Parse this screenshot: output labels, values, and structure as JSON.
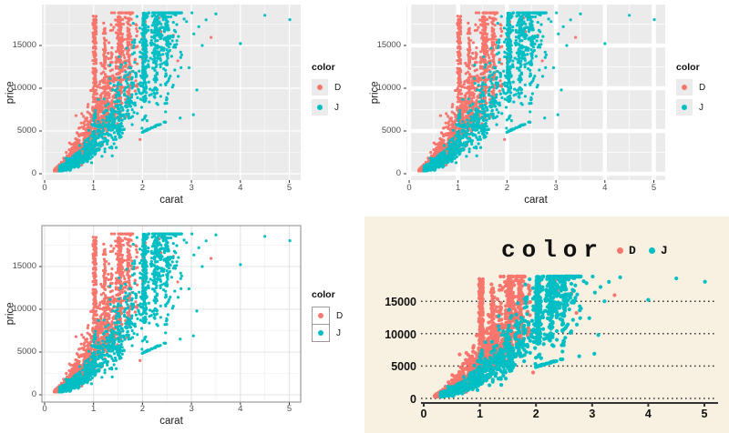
{
  "chart_data": {
    "type": "scatter",
    "xlabel": "carat",
    "ylabel": "price",
    "x_ticks": [
      0,
      1,
      2,
      3,
      4,
      5
    ],
    "y_ticks": [
      0,
      5000,
      10000,
      15000
    ],
    "x_minor_ticks": [
      0.5,
      1.5,
      2.5,
      3.5,
      4.5
    ],
    "y_minor_ticks": [
      2500,
      7500,
      12500,
      17500
    ],
    "xlim": [
      -0.08,
      5.25
    ],
    "ylim": [
      -750,
      19900
    ],
    "legend": {
      "title": "color",
      "entries": [
        {
          "label": "D",
          "color": "#F8766D"
        },
        {
          "label": "J",
          "color": "#00BFC4"
        }
      ]
    },
    "seed": 20230711,
    "series": [
      {
        "name": "D",
        "color": "#F8766D",
        "cloud": {
          "n": 1800,
          "carat_min": 0.2,
          "carat_range": 1.6,
          "carat_pow": 2.4,
          "price_coef": 5300,
          "price_exp": 1.95,
          "noise_sigma": 0.32
        },
        "columns": [
          {
            "carat": 1.02,
            "width": 0.07,
            "n": 150,
            "price_min": 2500,
            "price_max": 18500,
            "skew": 0.55
          },
          {
            "carat": 1.22,
            "width": 0.05,
            "n": 55,
            "price_min": 4200,
            "price_max": 17800,
            "skew": 0.7
          },
          {
            "carat": 1.53,
            "width": 0.07,
            "n": 105,
            "price_min": 4500,
            "price_max": 18400,
            "skew": 0.55
          },
          {
            "carat": 1.72,
            "width": 0.05,
            "n": 40,
            "price_min": 6500,
            "price_max": 18000,
            "skew": 0.7
          },
          {
            "carat": 1.87,
            "width": 0.06,
            "n": 18,
            "price_min": 8000,
            "price_max": 18200,
            "skew": 0.8
          },
          {
            "carat": 2.03,
            "width": 0.06,
            "n": 14,
            "price_min": 12500,
            "price_max": 18700,
            "skew": 0.8
          },
          {
            "carat": 2.33,
            "width": 0.12,
            "n": 8,
            "price_min": 16500,
            "price_max": 18700,
            "skew": 1.0
          }
        ],
        "outliers": [
          [
            0.64,
            6800
          ],
          [
            2.72,
            13200
          ],
          [
            3.4,
            15950
          ],
          [
            2.63,
            16200
          ],
          [
            1.95,
            4000
          ]
        ]
      },
      {
        "name": "J",
        "color": "#00BFC4",
        "cloud": {
          "n": 1000,
          "carat_min": 0.3,
          "carat_range": 2.5,
          "carat_pow": 1.7,
          "price_coef": 3400,
          "price_exp": 1.8,
          "noise_sigma": 0.3
        },
        "columns": [
          {
            "carat": 1.02,
            "width": 0.05,
            "n": 25,
            "price_min": 2200,
            "price_max": 7500,
            "skew": 1.0
          },
          {
            "carat": 1.52,
            "width": 0.05,
            "n": 30,
            "price_min": 3800,
            "price_max": 9500,
            "skew": 1.0
          },
          {
            "carat": 2.04,
            "width": 0.08,
            "n": 160,
            "price_min": 5200,
            "price_max": 18800,
            "skew": 0.5
          },
          {
            "carat": 2.27,
            "width": 0.07,
            "n": 75,
            "price_min": 6000,
            "price_max": 18600,
            "skew": 0.55
          },
          {
            "carat": 2.5,
            "width": 0.06,
            "n": 45,
            "price_min": 8000,
            "price_max": 18500,
            "skew": 0.6
          },
          {
            "carat": 2.4,
            "width": 0.25,
            "n": 60,
            "price_min": 12000,
            "price_max": 18800,
            "skew": 0.8
          }
        ],
        "streak": {
          "from": [
            1.98,
            4850
          ],
          "to": [
            2.48,
            6100
          ],
          "n": 30,
          "jitter": 110
        },
        "outliers": [
          [
            3.01,
            18823
          ],
          [
            3.5,
            18700
          ],
          [
            4.5,
            18531
          ],
          [
            5.01,
            18018
          ],
          [
            4.0,
            15223
          ],
          [
            3.11,
            9800
          ],
          [
            3.22,
            15000
          ],
          [
            2.9,
            17800
          ],
          [
            3.05,
            16350
          ],
          [
            3.3,
            18000
          ],
          [
            2.8,
            13900
          ],
          [
            2.95,
            12400
          ],
          [
            3.04,
            6900
          ],
          [
            2.77,
            6520
          ],
          [
            2.66,
            18600
          ],
          [
            2.7,
            17450
          ],
          [
            3.15,
            17200
          ],
          [
            2.85,
            18100
          ]
        ]
      }
    ],
    "panels": [
      {
        "id": "top-left",
        "theme": "grey",
        "grid": "thin-white-major-minor",
        "legend_position": "right"
      },
      {
        "id": "top-right",
        "theme": "grey-wide",
        "grid": "thick-white-major-minor",
        "legend_position": "right"
      },
      {
        "id": "bottom-left",
        "theme": "bw",
        "grid": "thin-grey-with-border",
        "legend_position": "right"
      },
      {
        "id": "bottom-right",
        "theme": "wheat",
        "grid": "dotted-horizontal-only",
        "legend_position": "top"
      }
    ],
    "colors": {
      "point_d": "#F8766D",
      "point_j": "#00BFC4",
      "panel_grey": "#EBEBEB",
      "grid_white": "#FFFFFF",
      "bw_grid_major": "#E3E3E3",
      "bw_grid_minor": "#F2F2F2",
      "bw_border": "#9B9B9B",
      "background_wheat": "#F8F1E1",
      "wheat_line": "#3A3A3A",
      "tick_text_grey": "#4D4D4D",
      "axis_title_black": "#1A1A1A"
    }
  }
}
